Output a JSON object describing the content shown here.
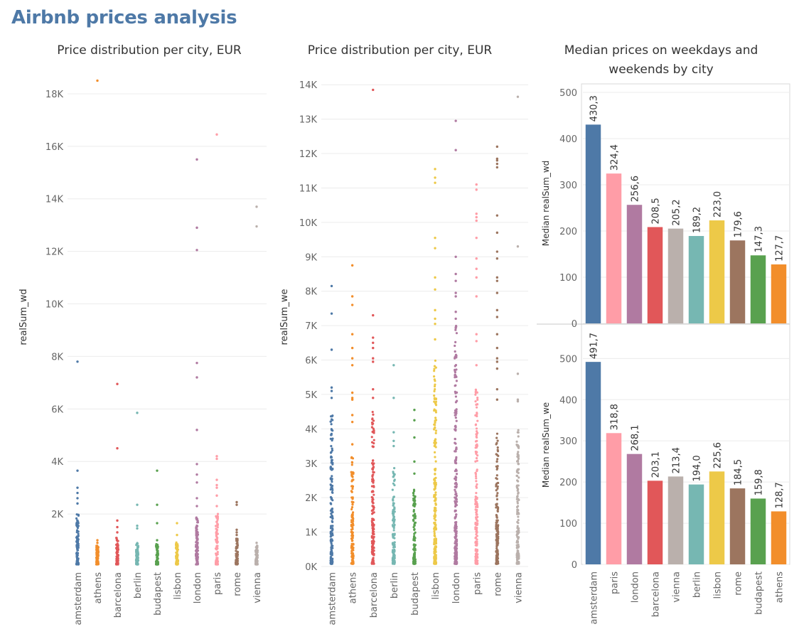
{
  "dashboard": {
    "title": "Airbnb prices analysis"
  },
  "colors": {
    "amsterdam": "#4e79a7",
    "athens": "#f28e2b",
    "barcelona": "#e15759",
    "berlin": "#76b7b2",
    "budapest": "#59a14f",
    "lisbon": "#edc948",
    "london": "#b07aa1",
    "paris": "#ff9da7",
    "rome": "#9c755f",
    "vienna": "#bab0ac"
  },
  "chart_data": [
    {
      "type": "scatter",
      "title": "Price distribution per city, EUR",
      "xlabel": "",
      "ylabel": "realSum_wd",
      "ylim": [
        0,
        19000
      ],
      "yticks": [
        2000,
        4000,
        6000,
        8000,
        10000,
        12000,
        14000,
        16000,
        18000
      ],
      "ytick_labels": [
        "2K",
        "4K",
        "6K",
        "8K",
        "10K",
        "12K",
        "14K",
        "16K",
        "18K"
      ],
      "categories": [
        "amsterdam",
        "athens",
        "barcelona",
        "berlin",
        "budapest",
        "lisbon",
        "london",
        "paris",
        "rome",
        "vienna"
      ],
      "dense_max": [
        2000,
        800,
        1100,
        900,
        900,
        950,
        1900,
        2000,
        1100,
        800
      ],
      "outliers": {
        "amsterdam": [
          7800,
          3650,
          3000,
          2800,
          2600,
          2400
        ],
        "athens": [
          18500,
          1000,
          900
        ],
        "barcelona": [
          6950,
          4500,
          1750,
          1500,
          1300
        ],
        "berlin": [
          5850,
          2350,
          1550,
          1450
        ],
        "budapest": [
          3650,
          2350,
          1650,
          1000
        ],
        "lisbon": [
          1650,
          1200
        ],
        "london": [
          15500,
          12900,
          12050,
          7750,
          7200,
          5200,
          3900,
          3500,
          3200,
          2600,
          2300
        ],
        "paris": [
          16450,
          4200,
          4100,
          3300,
          3100,
          3000,
          2700,
          2300
        ],
        "rome": [
          2450,
          2350,
          1400,
          1300,
          1200
        ],
        "vienna": [
          13700,
          12950,
          900
        ]
      }
    },
    {
      "type": "scatter",
      "title": "Price distribution per city, EUR",
      "xlabel": "",
      "ylabel": "realSum_we",
      "ylim": [
        0,
        14500
      ],
      "yticks": [
        0,
        1000,
        2000,
        3000,
        4000,
        5000,
        6000,
        7000,
        8000,
        9000,
        10000,
        11000,
        12000,
        13000,
        14000
      ],
      "ytick_labels": [
        "0K",
        "1K",
        "2K",
        "3K",
        "4K",
        "5K",
        "6K",
        "7K",
        "8K",
        "9K",
        "10K",
        "11K",
        "12K",
        "13K",
        "14K"
      ],
      "categories": [
        "amsterdam",
        "athens",
        "barcelona",
        "berlin",
        "budapest",
        "lisbon",
        "london",
        "paris",
        "rome",
        "vienna"
      ],
      "dense_max": [
        4500,
        3200,
        4500,
        2900,
        2300,
        6000,
        7000,
        5200,
        3900,
        4000
      ],
      "outliers": {
        "amsterdam": [
          8150,
          7350,
          6300,
          5200,
          5100,
          4900
        ],
        "athens": [
          8750,
          7850,
          7600,
          6750,
          6350,
          6050,
          5850,
          5050,
          4900,
          4850,
          4400,
          4200,
          3550
        ],
        "barcelona": [
          13850,
          7300,
          6650,
          6500,
          6350,
          6050,
          5950,
          5150,
          4900
        ],
        "berlin": [
          5850,
          4900,
          3900,
          3650,
          3500
        ],
        "budapest": [
          4550,
          4250,
          3750,
          3050,
          2700
        ],
        "lisbon": [
          11550,
          11300,
          11150,
          9550,
          9250,
          8400,
          8050,
          7450,
          7200,
          7050,
          6600
        ],
        "london": [
          12950,
          12100,
          9000,
          8500,
          8300,
          7950,
          7850,
          7400,
          7200,
          6950
        ],
        "paris": [
          11100,
          10950,
          10250,
          10150,
          10050,
          9550,
          8950,
          8650,
          8400,
          7850,
          6750,
          6550,
          5850
        ],
        "rome": [
          12200,
          11850,
          11800,
          11700,
          11600,
          10200,
          9700,
          9150,
          8950,
          8400,
          8300,
          7950,
          7450,
          7250,
          6750,
          6350,
          6050,
          5950,
          5750,
          5150,
          4850
        ],
        "vienna": [
          13650,
          9300,
          5600,
          4850,
          4800
        ]
      }
    },
    {
      "type": "bar",
      "title": "Median prices on weekdays and weekends by city",
      "panels": [
        {
          "ylabel": "Median realSum_wd",
          "ylim": [
            0,
            520
          ],
          "yticks": [
            0,
            100,
            200,
            300,
            400,
            500
          ],
          "categories": [
            "amsterdam",
            "paris",
            "london",
            "barcelona",
            "vienna",
            "berlin",
            "lisbon",
            "rome",
            "budapest",
            "athens"
          ],
          "values": [
            430.3,
            324.4,
            256.6,
            208.5,
            205.2,
            189.2,
            223.0,
            179.6,
            147.3,
            127.7
          ],
          "labels": [
            "430,3",
            "324,4",
            "256,6",
            "208,5",
            "205,2",
            "189,2",
            "223,0",
            "179,6",
            "147,3",
            "127,7"
          ]
        },
        {
          "ylabel": "Median realSum_we",
          "ylim": [
            0,
            580
          ],
          "yticks": [
            0,
            100,
            200,
            300,
            400,
            500
          ],
          "categories": [
            "amsterdam",
            "paris",
            "london",
            "barcelona",
            "vienna",
            "berlin",
            "lisbon",
            "rome",
            "budapest",
            "athens"
          ],
          "values": [
            491.7,
            318.8,
            268.1,
            203.1,
            213.4,
            194.0,
            225.6,
            184.5,
            159.8,
            128.7
          ],
          "labels": [
            "491,7",
            "318,8",
            "268,1",
            "203,1",
            "213,4",
            "194,0",
            "225,6",
            "184,5",
            "159,8",
            "128,7"
          ]
        }
      ]
    }
  ]
}
